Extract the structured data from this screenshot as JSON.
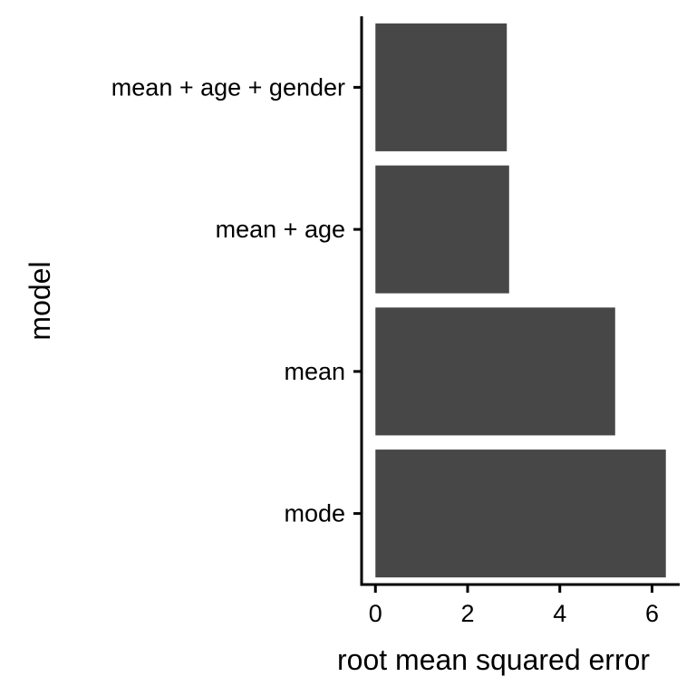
{
  "chart_data": {
    "type": "bar",
    "orientation": "horizontal",
    "categories": [
      "mean + age + gender",
      "mean + age",
      "mean",
      "mode"
    ],
    "values": [
      2.85,
      2.9,
      5.2,
      6.3
    ],
    "title": "",
    "xlabel": "root mean squared error",
    "ylabel": "model",
    "xlim": [
      -0.3,
      6.6
    ],
    "xticks": [
      0,
      2,
      4,
      6
    ],
    "bar_color": "#474747",
    "grid": false,
    "legend": "none"
  }
}
